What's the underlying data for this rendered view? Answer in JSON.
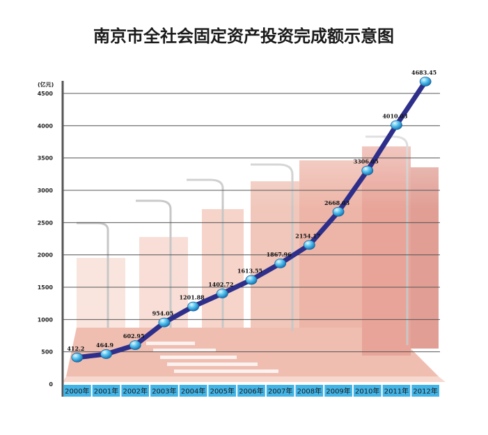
{
  "chart_data": {
    "type": "line",
    "title": "南京市全社会固定资产投资完成额示意图",
    "yunit": "(亿元)",
    "categories": [
      "2000年",
      "2001年",
      "2002年",
      "2003年",
      "2004年",
      "2005年",
      "2006年",
      "2007年",
      "2008年",
      "2009年",
      "2010年",
      "2011年",
      "2012年"
    ],
    "values": [
      412.2,
      464.9,
      602.95,
      954.05,
      1201.88,
      1402.72,
      1613.55,
      1867.96,
      2154.17,
      2668.03,
      3306.05,
      4010.03,
      4683.45
    ],
    "value_labels": [
      "412.2",
      "464.9",
      "602.95",
      "954.05",
      "1201.88",
      "1402.72",
      "1613.55",
      "1867.96",
      "2154.17",
      "2668.03",
      "3306.05",
      "4010.03",
      "4683.45"
    ],
    "ylim": [
      0,
      4500
    ],
    "yticks": [
      0,
      500,
      1000,
      1500,
      2000,
      2500,
      3000,
      3500,
      4000,
      4500
    ],
    "grid": true,
    "colors": {
      "line": "#2e2f8a",
      "marker": "#29a8e0",
      "grid": "#555555",
      "category_bar": "#43b4e6",
      "background_scene": "#d9735a"
    }
  }
}
